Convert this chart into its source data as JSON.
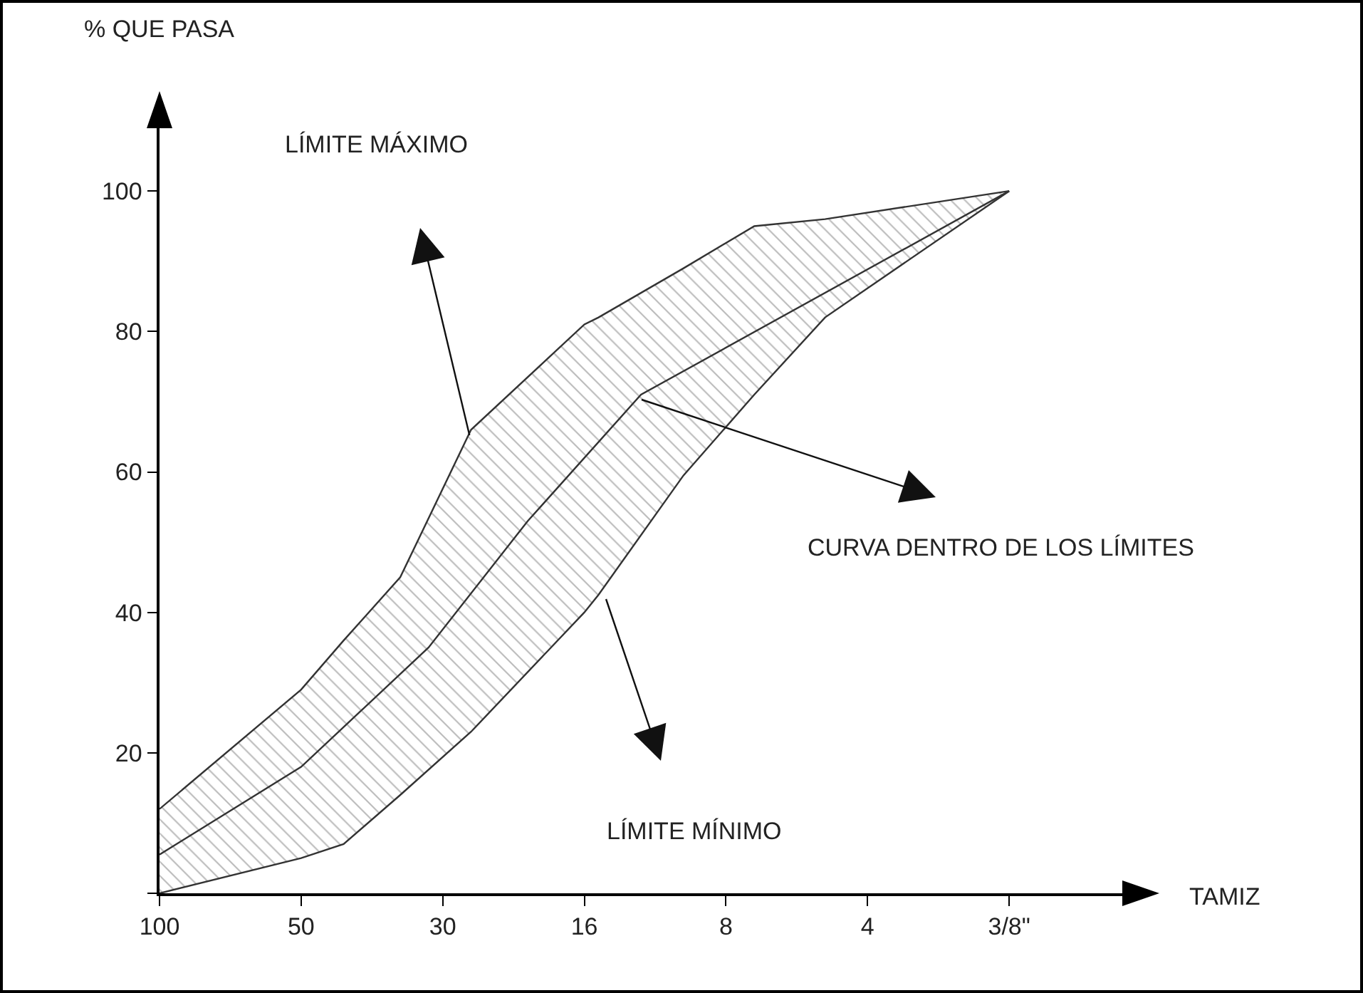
{
  "chart_data": {
    "type": "line",
    "ylabel": "% QUE PASA",
    "categories": [
      "100",
      null,
      null,
      null,
      null,
      null,
      null,
      null,
      null,
      null,
      "50",
      null,
      null,
      null,
      null,
      null,
      null,
      null,
      null,
      null,
      "30",
      null,
      null,
      null,
      null,
      null,
      null,
      null,
      null,
      null,
      "16",
      null,
      null,
      null,
      null,
      null,
      null,
      null,
      null,
      null,
      "8",
      null,
      null,
      null,
      null,
      null,
      null,
      null,
      null,
      null,
      "4",
      null,
      null,
      null,
      null,
      null,
      null,
      null,
      null,
      null,
      "3/8\""
    ],
    "ylim": [
      0,
      113
    ],
    "yticks": [
      {
        "value": 0,
        "label": null
      },
      20,
      40,
      60,
      80,
      100
    ],
    "marker": "none",
    "line_style": "solid",
    "series": [
      {
        "color": "#333333",
        "values": [
          12,
          null,
          null,
          null,
          null,
          null,
          null,
          null,
          null,
          null,
          29,
          null,
          null,
          36,
          null,
          null,
          null,
          45,
          null,
          null,
          null,
          null,
          66,
          null,
          null,
          null,
          null,
          null,
          null,
          null,
          81,
          82,
          null,
          null,
          null,
          null,
          null,
          89,
          null,
          null,
          null,
          null,
          95,
          null,
          null,
          null,
          null,
          96,
          null,
          null,
          null,
          null,
          null,
          null,
          null,
          null,
          null,
          null,
          null,
          null,
          100
        ]
      },
      {
        "color": "#333333",
        "values": [
          0,
          null,
          null,
          null,
          null,
          null,
          null,
          null,
          null,
          null,
          5,
          null,
          null,
          7,
          null,
          null,
          null,
          14,
          null,
          null,
          null,
          null,
          23,
          null,
          null,
          null,
          null,
          null,
          null,
          null,
          40,
          42.5,
          null,
          null,
          null,
          null,
          null,
          59.5,
          null,
          null,
          null,
          null,
          71,
          null,
          null,
          null,
          null,
          82,
          null,
          null,
          null,
          null,
          null,
          null,
          null,
          null,
          null,
          null,
          null,
          null,
          100
        ]
      },
      {
        "color": "#333333",
        "values": [
          5.5,
          null,
          null,
          null,
          null,
          null,
          null,
          null,
          null,
          null,
          18,
          null,
          null,
          null,
          null,
          null,
          null,
          null,
          null,
          35,
          null,
          null,
          null,
          null,
          null,
          null,
          53,
          null,
          null,
          null,
          null,
          null,
          null,
          null,
          71,
          null,
          null,
          null,
          null,
          null,
          null,
          null,
          null,
          null,
          null,
          null,
          null,
          null,
          null,
          null,
          null,
          null,
          null,
          null,
          null,
          null,
          null,
          null,
          null,
          null,
          100
        ],
        "upper": [
          12,
          null,
          null,
          null,
          null,
          null,
          null,
          null,
          null,
          null,
          29,
          null,
          null,
          36,
          null,
          null,
          null,
          45,
          null,
          null,
          null,
          null,
          66,
          null,
          null,
          null,
          null,
          null,
          null,
          null,
          81,
          82,
          null,
          null,
          null,
          null,
          null,
          89,
          null,
          null,
          null,
          null,
          95,
          null,
          null,
          null,
          null,
          96,
          null,
          null,
          null,
          null,
          null,
          null,
          null,
          null,
          null,
          null,
          null,
          null,
          100
        ],
        "lower": [
          0,
          null,
          null,
          null,
          null,
          null,
          null,
          null,
          null,
          null,
          5,
          null,
          null,
          7,
          null,
          null,
          null,
          14,
          null,
          null,
          null,
          null,
          23,
          null,
          null,
          null,
          null,
          null,
          null,
          null,
          40,
          42.5,
          null,
          null,
          null,
          null,
          null,
          59.5,
          null,
          null,
          null,
          null,
          71,
          null,
          null,
          null,
          null,
          82,
          null,
          null,
          null,
          null,
          null,
          null,
          null,
          null,
          null,
          null,
          null,
          null,
          100
        ]
      }
    ],
    "annotations": [
      "LÍMITE MÁXIMO",
      "CURVA DENTRO DE LOS LÍMITES",
      "LÍMITE MÍNIMO",
      "TAMIZ"
    ]
  }
}
